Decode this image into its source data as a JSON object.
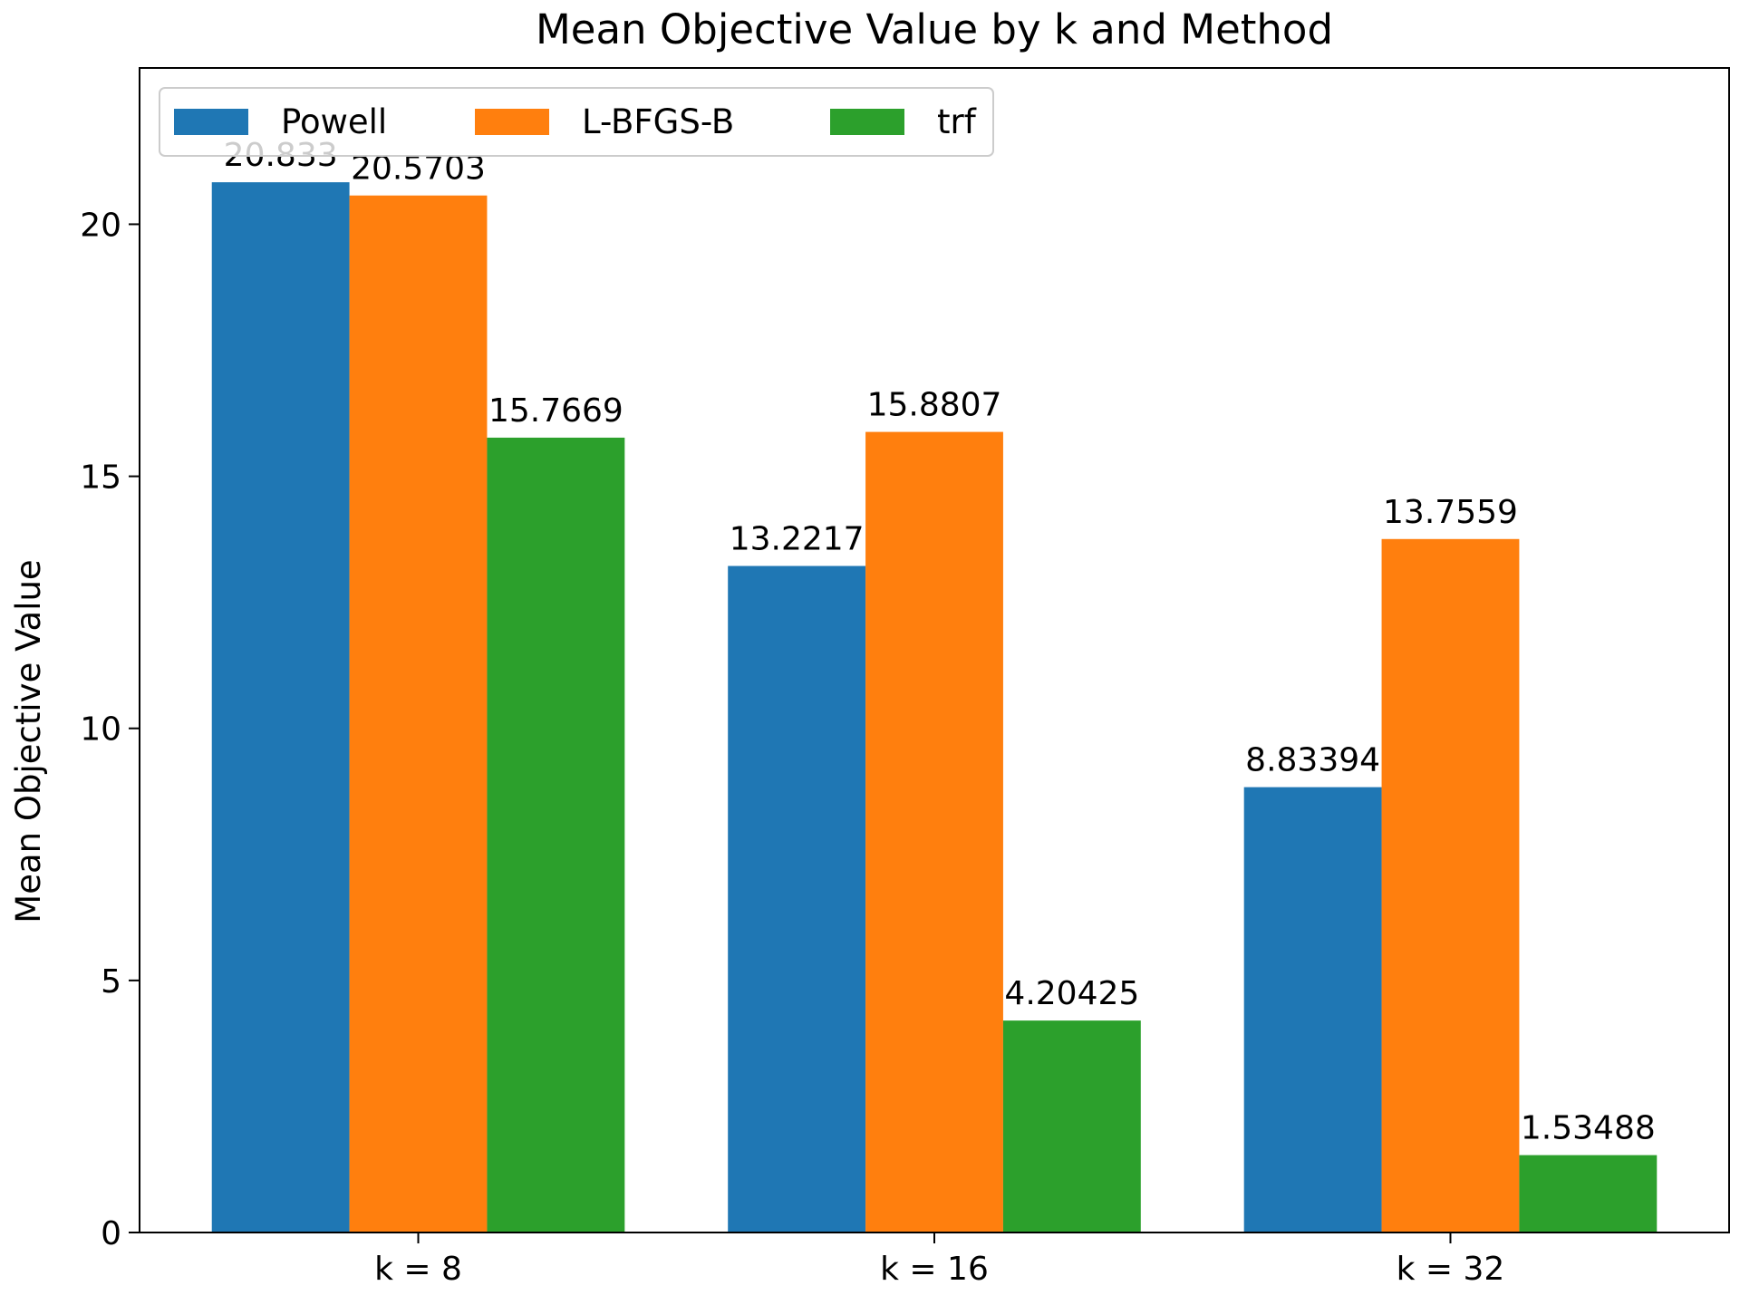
{
  "chart_data": {
    "type": "bar",
    "title": "Mean Objective Value by k and Method",
    "xlabel": "",
    "ylabel": "Mean Objective Value",
    "categories": [
      "k = 8",
      "k = 16",
      "k = 32"
    ],
    "series": [
      {
        "name": "Powell",
        "color": "#1f77b4",
        "values": [
          20.833,
          13.2217,
          8.83394
        ],
        "labels": [
          "20.833",
          "13.2217",
          "8.83394"
        ]
      },
      {
        "name": "L-BFGS-B",
        "color": "#ff7f0e",
        "values": [
          20.5703,
          15.8807,
          13.7559
        ],
        "labels": [
          "20.5703",
          "15.8807",
          "13.7559"
        ]
      },
      {
        "name": "trf",
        "color": "#2ca02c",
        "values": [
          15.7669,
          4.20425,
          1.53488
        ],
        "labels": [
          "15.7669",
          "4.20425",
          "1.53488"
        ]
      }
    ],
    "ylim": [
      0,
      23.1
    ],
    "yticks": [
      0,
      5,
      10,
      15,
      20
    ],
    "grid": false,
    "legend_position": "top-left"
  }
}
